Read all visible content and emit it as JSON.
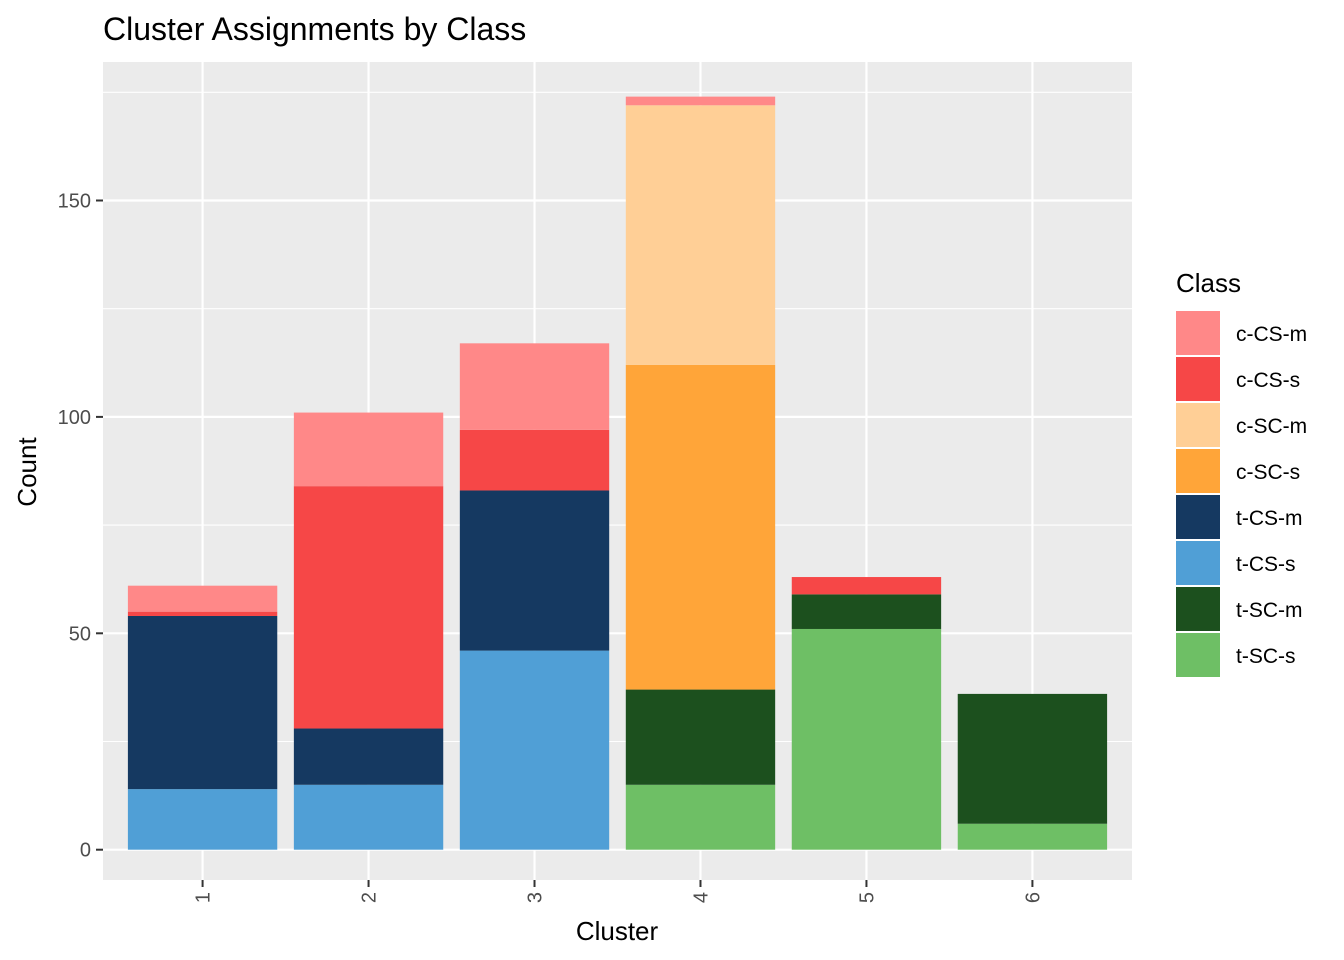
{
  "chart_data": {
    "type": "bar",
    "stacked": true,
    "title": "Cluster Assignments by Class",
    "xlabel": "Cluster",
    "ylabel": "Count",
    "categories": [
      "1",
      "2",
      "3",
      "4",
      "5",
      "6"
    ],
    "yticks": [
      0,
      50,
      100,
      150
    ],
    "ylim": [
      -7,
      182
    ],
    "grid": true,
    "legend": {
      "title": "Class",
      "placement": "right"
    },
    "series": [
      {
        "name": "t-SC-s",
        "color": "#6ebf65",
        "values": [
          0,
          0,
          0,
          15,
          51,
          6
        ]
      },
      {
        "name": "t-SC-m",
        "color": "#1c501e",
        "values": [
          0,
          0,
          0,
          22,
          8,
          30
        ]
      },
      {
        "name": "t-CS-s",
        "color": "#509fd6",
        "values": [
          14,
          15,
          46,
          0,
          0,
          0
        ]
      },
      {
        "name": "t-CS-m",
        "color": "#153961",
        "values": [
          40,
          13,
          37,
          0,
          0,
          0
        ]
      },
      {
        "name": "c-SC-s",
        "color": "#ffa539",
        "values": [
          0,
          0,
          0,
          75,
          0,
          0
        ]
      },
      {
        "name": "c-SC-m",
        "color": "#ffcf96",
        "values": [
          0,
          0,
          0,
          60,
          0,
          0
        ]
      },
      {
        "name": "c-CS-s",
        "color": "#f64747",
        "values": [
          1,
          56,
          14,
          0,
          4,
          0
        ]
      },
      {
        "name": "c-CS-m",
        "color": "#ff8888",
        "values": [
          6,
          17,
          20,
          2,
          0,
          0
        ]
      }
    ]
  }
}
